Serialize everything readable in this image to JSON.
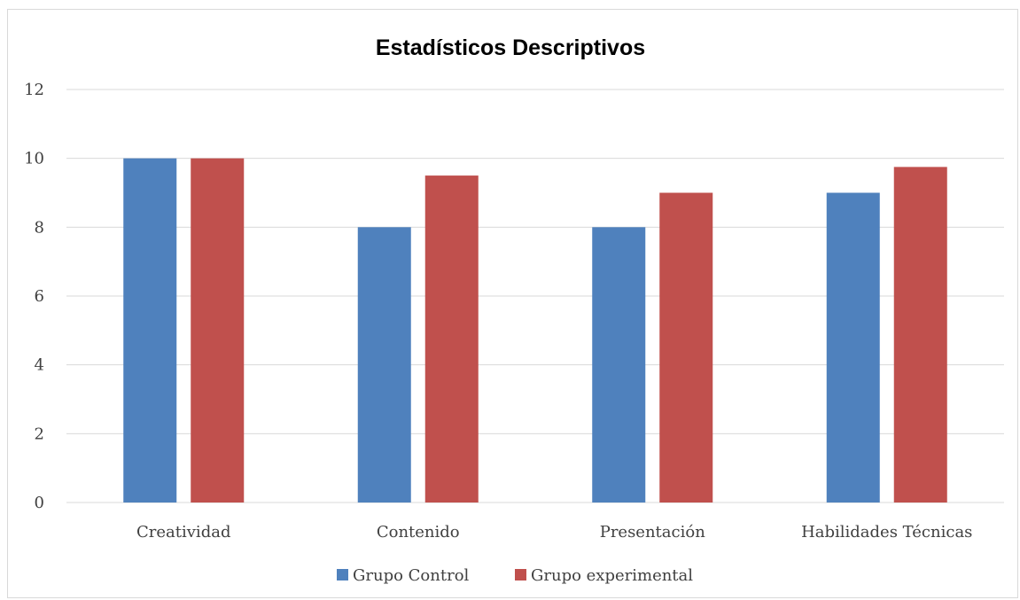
{
  "chart_data": {
    "type": "bar",
    "title": "Estadísticos Descriptivos",
    "xlabel": "",
    "ylabel": "",
    "categories": [
      "Creatividad",
      "Contenido",
      "Presentación",
      "Habilidades Técnicas"
    ],
    "series": [
      {
        "name": "Grupo Control",
        "values": [
          10,
          8,
          8,
          9
        ],
        "color": "#4f81bd"
      },
      {
        "name": "Grupo experimental",
        "values": [
          10,
          9.5,
          9,
          9.75
        ],
        "color": "#c0504d"
      }
    ],
    "ylim": [
      0,
      12
    ],
    "yticks": [
      "0",
      "2",
      "4",
      "6",
      "8",
      "10",
      "12"
    ],
    "grid": true,
    "gridColor": "#d9d9d9",
    "legend": "bottom"
  }
}
